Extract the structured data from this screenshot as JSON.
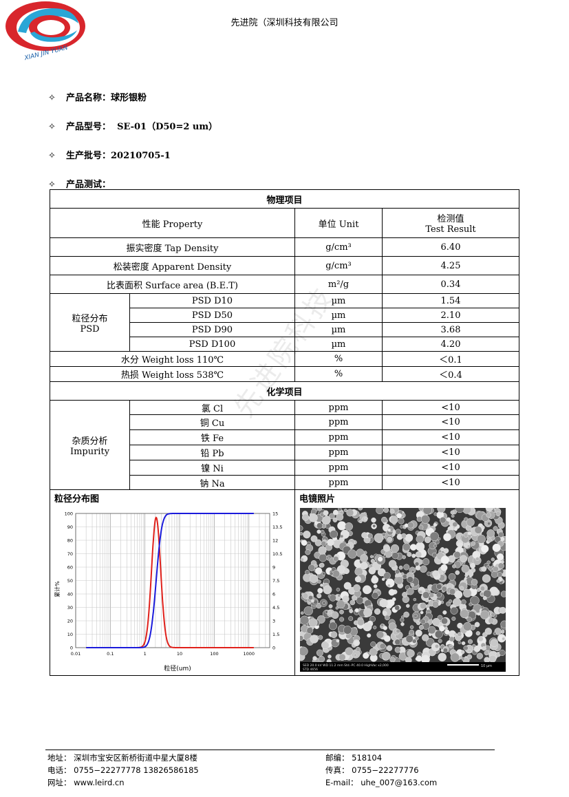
{
  "header": {
    "company": "先进院（深圳科技有限公司",
    "logo_text": "XIAN JIN YUAN"
  },
  "info": {
    "name_label": "产品名称：",
    "name_value": "球形银粉",
    "model_label": "产品型号：",
    "model_value": "SE-01（D50=2 um）",
    "batch_label": "生产批号：",
    "batch_value": "20210705-1",
    "test_label": "产品测试："
  },
  "table": {
    "physical_title": "物理项目",
    "col_property": "性能  Property",
    "col_unit": "单位  Unit",
    "col_result_1": "检测值",
    "col_result_2": "Test Result",
    "rows": [
      {
        "prop": "振实密度  Tap Density",
        "unit": "g/cm³",
        "value": "6.40"
      },
      {
        "prop": "松装密度  Apparent Density",
        "unit": "g/cm³",
        "value": "4.25"
      },
      {
        "prop": "比表面积  Surface area (B.E.T)",
        "unit": "m²/g",
        "value": "0.34"
      }
    ],
    "psd_group_1": "粒径分布",
    "psd_group_2": "PSD",
    "psd_rows": [
      {
        "prop": "PSD D10",
        "unit": "µm",
        "value": "1.54"
      },
      {
        "prop": "PSD D50",
        "unit": "µm",
        "value": "2.10"
      },
      {
        "prop": "PSD D90",
        "unit": "µm",
        "value": "3.68"
      },
      {
        "prop": "PSD D100",
        "unit": "µm",
        "value": "4.20"
      }
    ],
    "moisture": {
      "prop": "水分  Weight loss 110℃",
      "unit": "%",
      "value": "＜0.1"
    },
    "heatloss": {
      "prop": "热损  Weight loss 538℃",
      "unit": "%",
      "value": "＜0.4"
    },
    "chemical_title": "化学项目",
    "imp_group_1": "杂质分析",
    "imp_group_2": "Impurity",
    "imp_rows": [
      {
        "prop": "氯  Cl",
        "unit": "ppm",
        "value": "<10"
      },
      {
        "prop": "铜  Cu",
        "unit": "ppm",
        "value": "<10"
      },
      {
        "prop": "铁  Fe",
        "unit": "ppm",
        "value": "<10"
      },
      {
        "prop": "铅  Pb",
        "unit": "ppm",
        "value": "<10"
      },
      {
        "prop": "镍  Ni",
        "unit": "ppm",
        "value": "<10"
      },
      {
        "prop": "钠  Na",
        "unit": "ppm",
        "value": "<10"
      }
    ],
    "psd_chart_title": "粒径分布图",
    "sem_title": "电镜照片"
  },
  "chart": {
    "xlabel": "粒径(um)",
    "ylabel": "累计%",
    "x_ticks": [
      "0.01",
      "0.1",
      "1",
      "10",
      "100",
      "1000"
    ],
    "y_left_ticks": [
      "0",
      "10",
      "20",
      "30",
      "40",
      "50",
      "60",
      "70",
      "80",
      "90",
      "100"
    ],
    "y_right_ticks": [
      "0",
      "1.5",
      "3",
      "4.5",
      "6",
      "7.5",
      "9",
      "10.5",
      "12",
      "13.5",
      "15"
    ],
    "cumulative_color": "#1a1adb",
    "distribution_color": "#e0201a"
  },
  "sem": {
    "info_line1": "SED   20.0 kV   WD 11.2 mm   Std.-PC 40.0   HighVac   x2,000",
    "info_line2": "STD   4656",
    "scale": "10 µm"
  },
  "footer": {
    "address": "地址：  深圳市宝安区新桥街道中星大厦8楼",
    "phone": "电话：  0755−22277778  13826586185",
    "web": "网址：  www.leird.cn",
    "postcode": "邮编：  518104",
    "fax": "传真：  0755−22277776",
    "email": "E-mail：  uhe_007@163.com"
  },
  "watermark": "先进院科技"
}
